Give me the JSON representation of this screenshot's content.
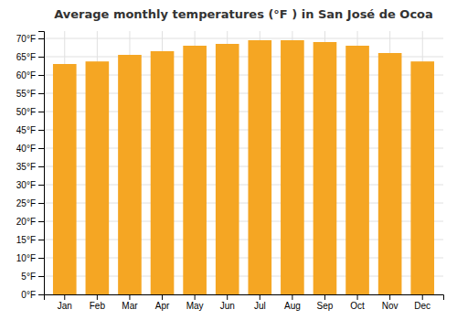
{
  "chart_data": {
    "type": "bar",
    "title": "Average monthly temperatures (°F ) in San José de Ocoa",
    "categories": [
      "Jan",
      "Feb",
      "Mar",
      "Apr",
      "May",
      "Jun",
      "Jul",
      "Aug",
      "Sep",
      "Oct",
      "Nov",
      "Dec"
    ],
    "values": [
      63.0,
      63.7,
      65.5,
      66.5,
      68.0,
      68.5,
      69.5,
      69.5,
      69.0,
      68.0,
      66.0,
      63.7
    ],
    "color": "#F5A623",
    "ylim": [
      0,
      72
    ],
    "yticks": [
      {
        "value": 0,
        "label": "0°F"
      },
      {
        "value": 5,
        "label": "5°F"
      },
      {
        "value": 10,
        "label": "10°F"
      },
      {
        "value": 15,
        "label": "15°F"
      },
      {
        "value": 20,
        "label": "20°F"
      },
      {
        "value": 25,
        "label": "25°F"
      },
      {
        "value": 30,
        "label": "30°F"
      },
      {
        "value": 35,
        "label": "35°F"
      },
      {
        "value": 40,
        "label": "40°F"
      },
      {
        "value": 45,
        "label": "45°F"
      },
      {
        "value": 50,
        "label": "50°F"
      },
      {
        "value": 55,
        "label": "55°F"
      },
      {
        "value": 60,
        "label": "60°F"
      },
      {
        "value": 65,
        "label": "65°F"
      },
      {
        "value": 70,
        "label": "70°F"
      }
    ],
    "grid": true
  }
}
